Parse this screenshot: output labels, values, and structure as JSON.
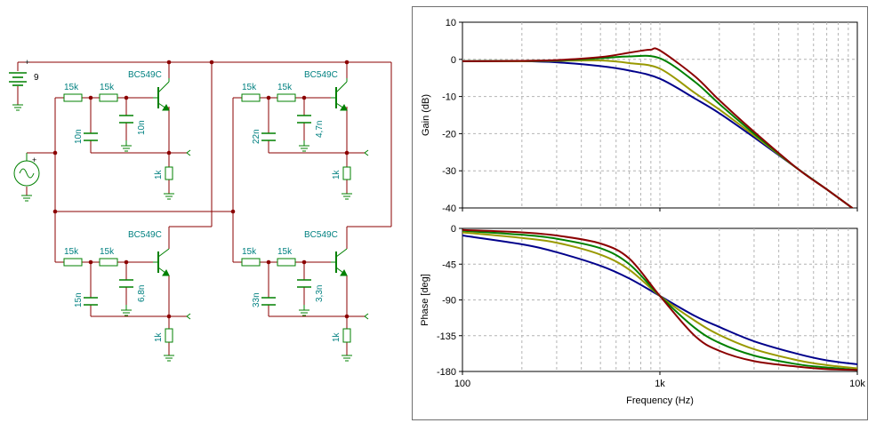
{
  "schematic": {
    "supply_label": "9",
    "stages": [
      {
        "r1": "15k",
        "r2": "15k",
        "c_shunt": "10n",
        "c_gnd": "10n",
        "transistor": "BC549C",
        "r_load": "1k"
      },
      {
        "r1": "15k",
        "r2": "15k",
        "c_shunt": "22n",
        "c_gnd": "4,7n",
        "transistor": "BC549C",
        "r_load": "1k"
      },
      {
        "r1": "15k",
        "r2": "15k",
        "c_shunt": "15n",
        "c_gnd": "6,8n",
        "transistor": "BC549C",
        "r_load": "1k"
      },
      {
        "r1": "15k",
        "r2": "15k",
        "c_shunt": "33n",
        "c_gnd": "3,3n",
        "transistor": "BC549C",
        "r_load": "1k"
      }
    ]
  },
  "colors": {
    "wire": "#8b0000",
    "component": "#008000",
    "label": "#008080",
    "text": "#000000"
  },
  "chart_data": [
    {
      "type": "line",
      "ylabel": "Gain (dB)",
      "xlabel": "",
      "x_scale": "log",
      "xlim": [
        100,
        10000
      ],
      "ylim": [
        -40,
        10
      ],
      "yticks": [
        10,
        0,
        -10,
        -20,
        -30,
        -40
      ],
      "grid": true,
      "series": [
        {
          "color": "#00008b",
          "x": [
            100,
            200,
            300,
            500,
            700,
            1000,
            1500,
            2000,
            3000,
            5000,
            7000,
            10000
          ],
          "y": [
            -0.5,
            -0.5,
            -0.8,
            -1.8,
            -3,
            -5.2,
            -10.5,
            -14.5,
            -21,
            -29.5,
            -35,
            -41
          ]
        },
        {
          "color": "#999900",
          "x": [
            100,
            200,
            300,
            500,
            700,
            1000,
            1500,
            2000,
            3000,
            5000,
            7000,
            10000
          ],
          "y": [
            -0.5,
            -0.5,
            -0.4,
            -0.3,
            -1,
            -2.5,
            -9,
            -13.5,
            -20.5,
            -29.5,
            -35,
            -41
          ]
        },
        {
          "color": "#008000",
          "x": [
            100,
            200,
            300,
            500,
            700,
            1000,
            1500,
            2000,
            3000,
            5000,
            7000,
            10000
          ],
          "y": [
            -0.5,
            -0.4,
            -0.3,
            0.3,
            0.8,
            0.3,
            -6,
            -12,
            -20,
            -29.5,
            -35,
            -41
          ]
        },
        {
          "color": "#8b0000",
          "x": [
            100,
            200,
            300,
            500,
            700,
            800,
            900,
            1000,
            1500,
            2000,
            3000,
            5000,
            7000,
            10000
          ],
          "y": [
            -0.5,
            -0.4,
            -0.2,
            0.6,
            1.8,
            2.3,
            2.6,
            2.4,
            -4.5,
            -11,
            -19.5,
            -29.5,
            -35,
            -41
          ]
        }
      ]
    },
    {
      "type": "line",
      "ylabel": "Phase [deg]",
      "xlabel": "Frequency (Hz)",
      "x_scale": "log",
      "xlim": [
        100,
        10000
      ],
      "ylim": [
        -180,
        0
      ],
      "yticks": [
        0,
        -45,
        -90,
        -135,
        -180
      ],
      "xticks": [
        "100",
        "1k",
        "10k"
      ],
      "grid": true,
      "series": [
        {
          "color": "#00008b",
          "x": [
            100,
            200,
            300,
            500,
            700,
            1000,
            1500,
            2000,
            3000,
            5000,
            7000,
            10000
          ],
          "y": [
            -9,
            -20,
            -30,
            -47,
            -63,
            -85,
            -110,
            -124,
            -142,
            -158,
            -166,
            -171
          ]
        },
        {
          "color": "#999900",
          "x": [
            100,
            200,
            300,
            500,
            700,
            1000,
            1500,
            2000,
            3000,
            5000,
            7000,
            10000
          ],
          "y": [
            -5,
            -12,
            -18,
            -33,
            -52,
            -85,
            -116,
            -134,
            -152,
            -166,
            -172,
            -176
          ]
        },
        {
          "color": "#008000",
          "x": [
            100,
            200,
            300,
            500,
            700,
            1000,
            1500,
            2000,
            3000,
            5000,
            7000,
            10000
          ],
          "y": [
            -3,
            -8,
            -13,
            -25,
            -45,
            -85,
            -125,
            -144,
            -160,
            -171,
            -175,
            -178
          ]
        },
        {
          "color": "#8b0000",
          "x": [
            100,
            200,
            300,
            500,
            700,
            1000,
            1500,
            2000,
            3000,
            5000,
            7000,
            10000
          ],
          "y": [
            -2,
            -5,
            -9,
            -19,
            -38,
            -85,
            -135,
            -154,
            -167,
            -174,
            -177,
            -178
          ]
        }
      ]
    }
  ]
}
